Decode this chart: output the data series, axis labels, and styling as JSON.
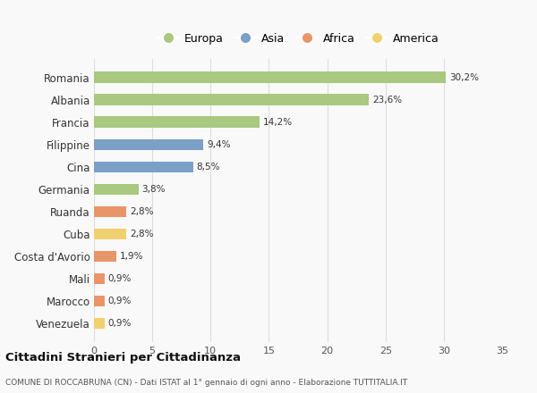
{
  "categories": [
    "Romania",
    "Albania",
    "Francia",
    "Filippine",
    "Cina",
    "Germania",
    "Ruanda",
    "Cuba",
    "Costa d'Avorio",
    "Mali",
    "Marocco",
    "Venezuela"
  ],
  "values": [
    30.2,
    23.6,
    14.2,
    9.4,
    8.5,
    3.8,
    2.8,
    2.8,
    1.9,
    0.9,
    0.9,
    0.9
  ],
  "labels": [
    "30,2%",
    "23,6%",
    "14,2%",
    "9,4%",
    "8,5%",
    "3,8%",
    "2,8%",
    "2,8%",
    "1,9%",
    "0,9%",
    "0,9%",
    "0,9%"
  ],
  "continents": [
    "Europa",
    "Europa",
    "Europa",
    "Asia",
    "Asia",
    "Europa",
    "Africa",
    "America",
    "Africa",
    "Africa",
    "Africa",
    "America"
  ],
  "colors": {
    "Europa": "#a8c97f",
    "Asia": "#7b9fc7",
    "Africa": "#e8956a",
    "America": "#f0d070"
  },
  "xlim": [
    0,
    35
  ],
  "xticks": [
    0,
    5,
    10,
    15,
    20,
    25,
    30,
    35
  ],
  "background_color": "#f9f9f9",
  "grid_color": "#dddddd",
  "title1": "Cittadini Stranieri per Cittadinanza",
  "title2": "COMUNE DI ROCCABRUNA (CN) - Dati ISTAT al 1° gennaio di ogni anno - Elaborazione TUTTITALIA.IT",
  "legend_order": [
    "Europa",
    "Asia",
    "Africa",
    "America"
  ]
}
